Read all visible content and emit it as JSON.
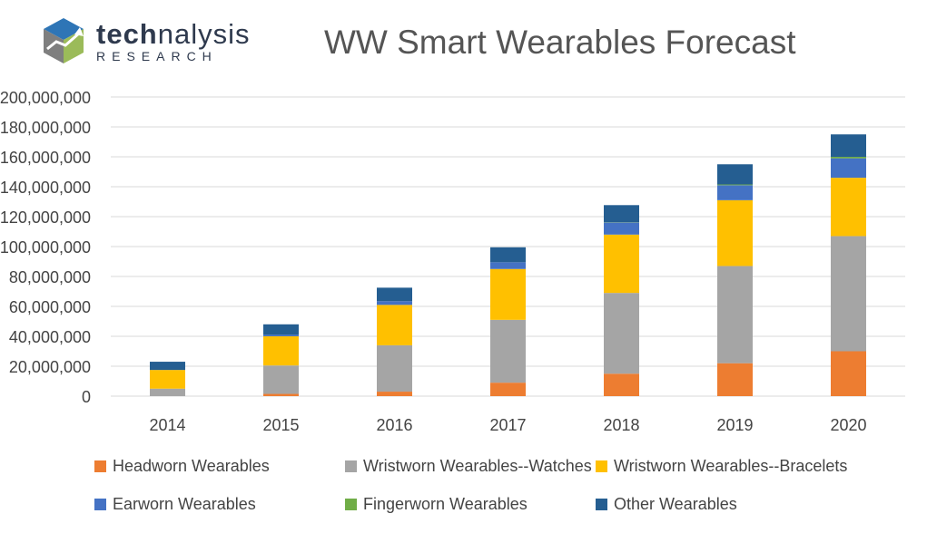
{
  "logo": {
    "word_bold": "tech",
    "word_light": "nalysis",
    "tagline": "RESEARCH"
  },
  "colors": {
    "headworn": "#ed7d31",
    "watches": "#a5a5a5",
    "bracelets": "#ffc000",
    "earworn": "#4472c4",
    "fingerworn": "#70ad47",
    "other": "#255e91",
    "grid": "#d9d9d9"
  },
  "chart_data": {
    "type": "bar",
    "stacked": true,
    "title": "WW Smart Wearables Forecast",
    "xlabel": "",
    "ylabel": "",
    "ylim": [
      0,
      200000000
    ],
    "yticks": [
      0,
      20000000,
      40000000,
      60000000,
      80000000,
      100000000,
      120000000,
      140000000,
      160000000,
      180000000,
      200000000
    ],
    "ytick_labels": [
      "0",
      "20,000,000",
      "40,000,000",
      "60,000,000",
      "80,000,000",
      "100,000,000",
      "120,000,000",
      "140,000,000",
      "160,000,000",
      "180,000,000",
      "200,000,000"
    ],
    "grid": true,
    "legend_position": "bottom",
    "categories": [
      "2014",
      "2015",
      "2016",
      "2017",
      "2018",
      "2019",
      "2020"
    ],
    "series": [
      {
        "name": "Headworn Wearables",
        "color_key": "headworn",
        "values": [
          0,
          1500000,
          3000000,
          9000000,
          15000000,
          22000000,
          30000000
        ]
      },
      {
        "name": "Wristworn Wearables--Watches",
        "color_key": "watches",
        "values": [
          5000000,
          19000000,
          31000000,
          42000000,
          54000000,
          65000000,
          77000000
        ]
      },
      {
        "name": "Wristworn Wearables--Bracelets",
        "color_key": "bracelets",
        "values": [
          12500000,
          19500000,
          27000000,
          34000000,
          39000000,
          44000000,
          39000000
        ]
      },
      {
        "name": "Earworn Wearables",
        "color_key": "earworn",
        "values": [
          0,
          1000000,
          2500000,
          4500000,
          8000000,
          10000000,
          13000000
        ]
      },
      {
        "name": "Fingerworn Wearables",
        "color_key": "fingerworn",
        "values": [
          0,
          0,
          0,
          0,
          200000,
          500000,
          1000000
        ]
      },
      {
        "name": "Other Wearables",
        "color_key": "other",
        "values": [
          5500000,
          7000000,
          9000000,
          10000000,
          11500000,
          13500000,
          15000000
        ]
      }
    ]
  }
}
